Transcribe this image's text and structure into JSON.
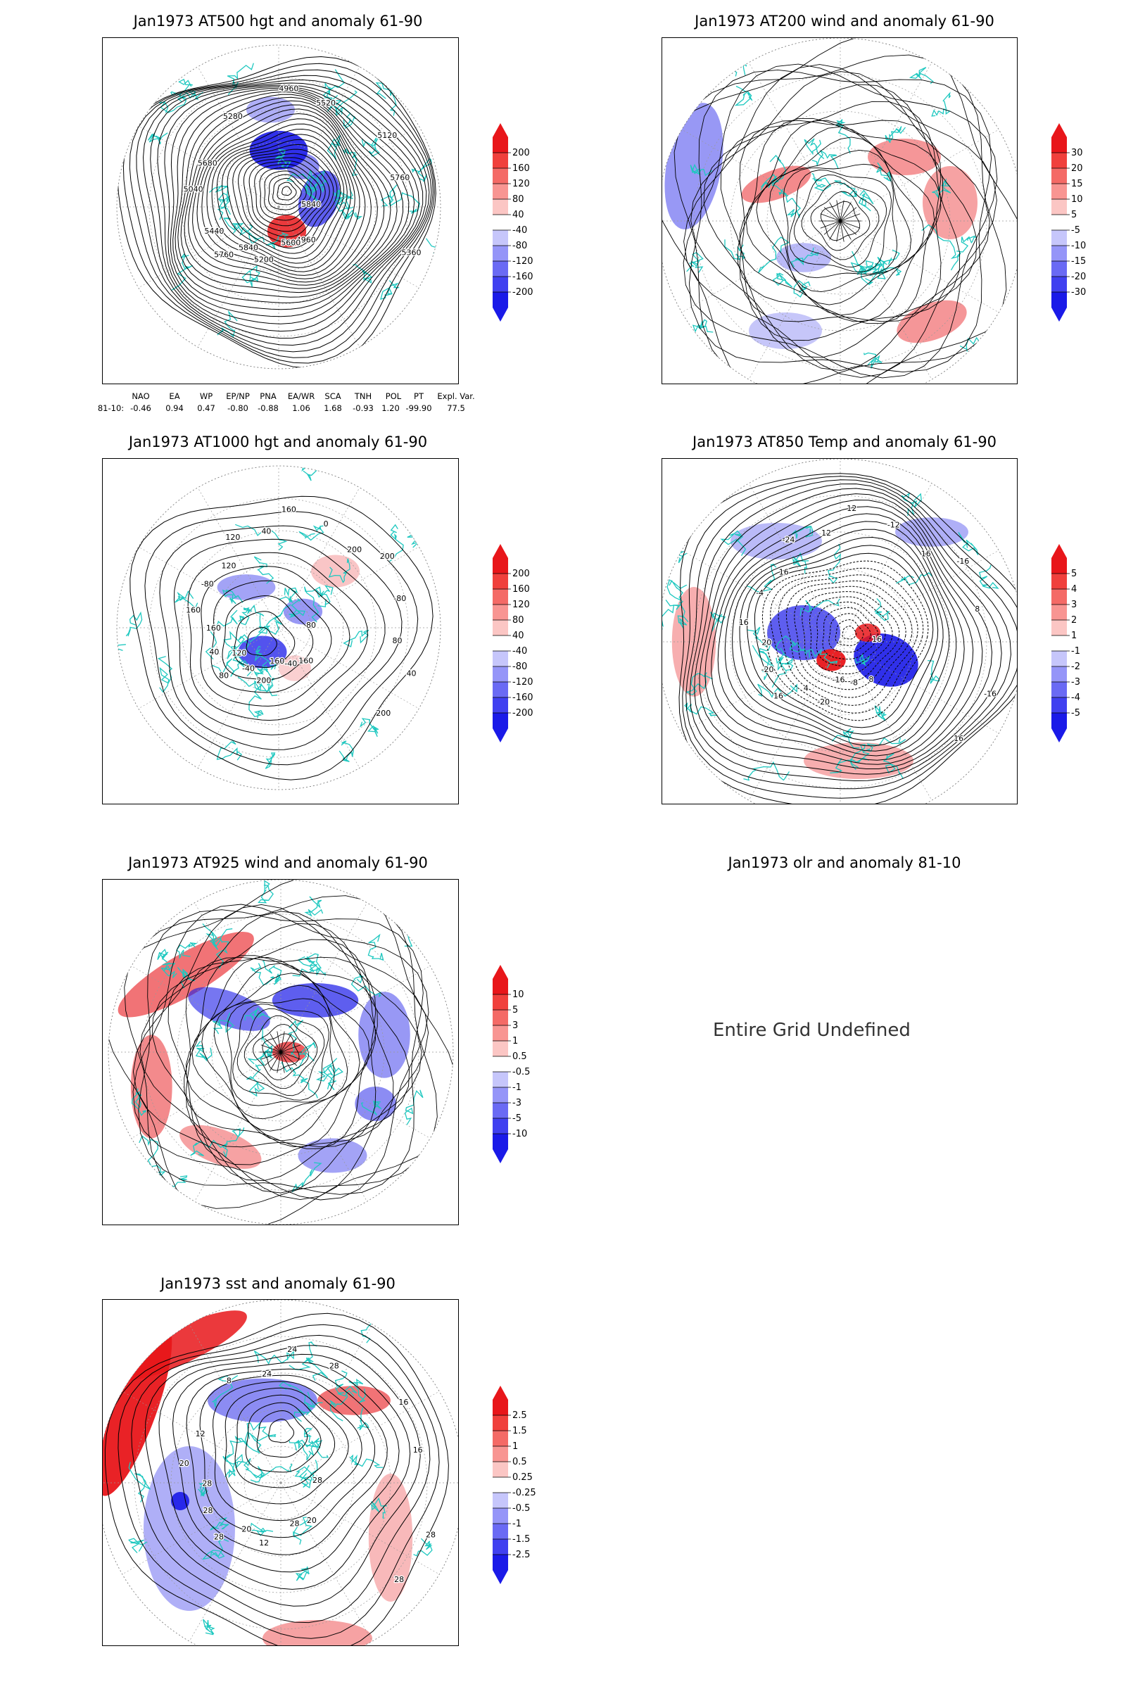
{
  "panels": [
    {
      "id": "p500",
      "title": "Jan1973 AT500 hgt and anomaly 61-90",
      "contour_labels": [
        "5840",
        "5760",
        "4960",
        "4960",
        "5040",
        "5120",
        "5200",
        "5280",
        "5360",
        "5440",
        "5520",
        "5600",
        "5680",
        "5760",
        "5840"
      ],
      "colorbar": [
        "200",
        "160",
        "120",
        "80",
        "40",
        "-40",
        "-80",
        "-120",
        "-160",
        "-200"
      ]
    },
    {
      "id": "p200",
      "title": "Jan1973 AT200 wind and anomaly 61-90",
      "colorbar": [
        "30",
        "20",
        "15",
        "10",
        "5",
        "-5",
        "-10",
        "-15",
        "-20",
        "-30"
      ]
    },
    {
      "id": "p1000",
      "title": "Jan1973 AT1000 hgt and anomaly 61-90",
      "contour_labels": [
        "80",
        "80",
        "160",
        "160",
        "160",
        "200",
        "200",
        "120",
        "40",
        "40",
        "0",
        "-40",
        "-80",
        "-80",
        "-40",
        "40",
        "200",
        "160",
        "200",
        "160",
        "120",
        "80",
        "120"
      ],
      "colorbar": [
        "200",
        "160",
        "120",
        "80",
        "40",
        "-40",
        "-80",
        "-120",
        "-160",
        "-200"
      ]
    },
    {
      "id": "p850",
      "title": "Jan1973 AT850 Temp and anomaly 61-90",
      "contour_labels": [
        "16",
        "16",
        "12",
        "8",
        "16",
        "-16",
        "-20",
        "-24",
        "-16",
        "-20",
        "-12",
        "-8",
        "-4",
        "8",
        "4",
        "12",
        "16",
        "20",
        "16",
        "-16",
        "16"
      ],
      "colorbar": [
        "5",
        "4",
        "3",
        "2",
        "1",
        "-1",
        "-2",
        "-3",
        "-4",
        "-5"
      ]
    },
    {
      "id": "p925",
      "title": "Jan1973 AT925 wind and anomaly 61-90",
      "colorbar": [
        "10",
        "5",
        "3",
        "1",
        "0.5",
        "-0.5",
        "-1",
        "-3",
        "-5",
        "-10"
      ]
    },
    {
      "id": "polr",
      "title": "Jan1973 olr and anomaly 81-10",
      "undefined_text": "Entire Grid Undefined"
    },
    {
      "id": "psst",
      "title": "Jan1973 sst and anomaly 61-90",
      "contour_labels": [
        "28",
        "28",
        "24",
        "20",
        "20",
        "16",
        "12",
        "8",
        "28",
        "28",
        "28",
        "28",
        "12",
        "16",
        "20",
        "24",
        "28",
        "28"
      ],
      "colorbar": [
        "2.5",
        "1.5",
        "1",
        "0.5",
        "0.25",
        "-0.25",
        "-0.5",
        "-1",
        "-1.5",
        "-2.5"
      ]
    }
  ],
  "indices": {
    "headers": [
      "NAO",
      "EA",
      "WP",
      "EP/NP",
      "PNA",
      "EA/WR",
      "SCA",
      "TNH",
      "POL",
      "PT",
      "Expl. Var."
    ],
    "row_label": "81-10:",
    "values": [
      "-0.46",
      "0.94",
      "0.47",
      "-0.80",
      "-0.88",
      "1.06",
      "1.68",
      "-0.93",
      "1.20",
      "-99.90",
      "77.5"
    ]
  },
  "colors": {
    "positive": "#e8161a",
    "negative": "#1a1ae8",
    "coastline": "#1fc8c0",
    "contour": "#000000"
  }
}
